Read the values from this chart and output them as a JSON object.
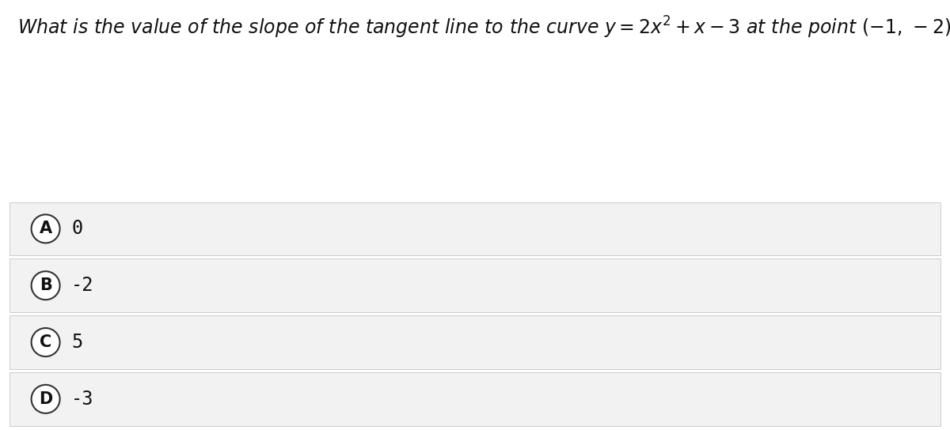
{
  "title_parts": [
    {
      "text": "What is the value of the slope of the tangent line to the curve ",
      "style": "italic_serif"
    },
    {
      "text": "y = 2x² + x – 3",
      "style": "math"
    },
    {
      "text": " at the point ",
      "style": "italic_serif"
    },
    {
      "text": "(−1, −2)",
      "style": "math"
    },
    {
      "text": "?",
      "style": "italic_serif"
    }
  ],
  "options": [
    {
      "label": "A",
      "value": "0"
    },
    {
      "label": "B",
      "value": "-2"
    },
    {
      "label": "C",
      "value": "5"
    },
    {
      "label": "D",
      "value": "-3"
    }
  ],
  "bg_color": "#ffffff",
  "option_bg_color": "#f2f2f2",
  "option_border_color": "#cccccc",
  "circle_edge_color": "#333333",
  "text_color": "#111111",
  "title_fontsize": 17,
  "option_fontsize": 17,
  "label_fontsize": 15,
  "fig_width": 12.0,
  "fig_height": 5.44,
  "dpi": 100
}
